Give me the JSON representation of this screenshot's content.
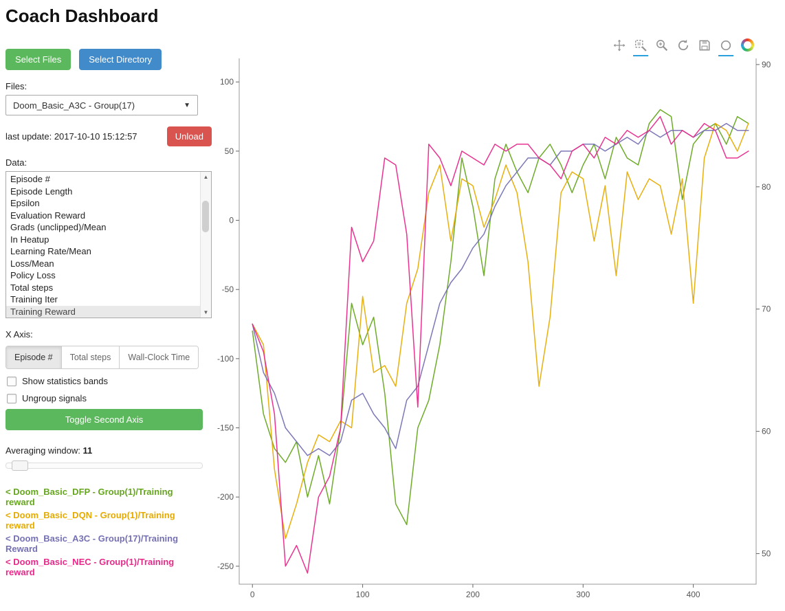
{
  "header": {
    "title": "Coach Dashboard"
  },
  "sidebar": {
    "select_files_label": "Select Files",
    "select_directory_label": "Select Directory",
    "files_label": "Files:",
    "files_dropdown_value": "Doom_Basic_A3C - Group(17)",
    "last_update_text": "last update: 2017-10-10 15:12:57",
    "unload_label": "Unload",
    "data_label": "Data:",
    "data_items": [
      "Episode #",
      "Episode Length",
      "Epsilon",
      "Evaluation Reward",
      "Grads (unclipped)/Mean",
      "In Heatup",
      "Learning Rate/Mean",
      "Loss/Mean",
      "Policy Loss",
      "Total steps",
      "Training Iter",
      "Training Reward"
    ],
    "data_selected_item": "Training Reward",
    "x_axis_label": "X Axis:",
    "x_axis_options": [
      "Episode #",
      "Total steps",
      "Wall-Clock Time"
    ],
    "x_axis_selected": "Episode #",
    "checkboxes": [
      {
        "label": "Show statistics bands",
        "checked": false
      },
      {
        "label": "Ungroup signals",
        "checked": false
      }
    ],
    "toggle_second_axis_label": "Toggle Second Axis",
    "averaging_window_label": "Averaging window:",
    "averaging_window_value": "11",
    "legend": [
      {
        "label": "< Doom_Basic_DFP - Group(1)/Training reward",
        "color": "#66a61e"
      },
      {
        "label": "< Doom_Basic_DQN - Group(1)/Training reward",
        "color": "#e6ab02"
      },
      {
        "label": "< Doom_Basic_A3C - Group(17)/Training Reward",
        "color": "#7570b3"
      },
      {
        "label": "< Doom_Basic_NEC - Group(1)/Training reward",
        "color": "#e7298a"
      }
    ]
  },
  "chart_toolbar": {
    "active_color": "#2aa1dc",
    "icons": [
      {
        "name": "pan-icon",
        "active": false
      },
      {
        "name": "box-zoom-icon",
        "active": true
      },
      {
        "name": "wheel-zoom-icon",
        "active": false
      },
      {
        "name": "reset-icon",
        "active": false
      },
      {
        "name": "save-icon",
        "active": false
      },
      {
        "name": "hover-icon",
        "active": true
      },
      {
        "name": "bokeh-logo-icon",
        "active": false
      }
    ]
  },
  "chart_data": {
    "type": "line",
    "title": "",
    "xlabel": "",
    "ylabel": "",
    "grid": false,
    "legend_position": "sidebar-bottom-left",
    "x_ticks": [
      0,
      100,
      200,
      300,
      400
    ],
    "y_left_ticks": [
      100,
      50,
      0,
      -50,
      -100,
      -150,
      -200,
      -250
    ],
    "y_right_ticks": [
      90,
      80,
      70,
      60,
      50
    ],
    "x_range": [
      -12,
      457
    ],
    "y_left_range": [
      -263,
      117
    ],
    "y_right_range": [
      47.5,
      90.5
    ],
    "x": [
      0,
      10,
      20,
      30,
      40,
      50,
      60,
      70,
      80,
      90,
      100,
      110,
      120,
      130,
      140,
      150,
      160,
      170,
      180,
      190,
      200,
      210,
      220,
      230,
      240,
      250,
      260,
      270,
      280,
      290,
      300,
      310,
      320,
      330,
      340,
      350,
      360,
      370,
      380,
      390,
      400,
      410,
      420,
      430,
      440,
      450
    ],
    "series": [
      {
        "name": "Doom_Basic_DFP - Group(1)/Training reward",
        "color": "#66a61e",
        "axis": "left",
        "y": [
          -80,
          -140,
          -165,
          -175,
          -160,
          -200,
          -170,
          -205,
          -150,
          -60,
          -90,
          -70,
          -125,
          -205,
          -220,
          -150,
          -130,
          -90,
          -30,
          45,
          10,
          -40,
          30,
          55,
          35,
          20,
          45,
          55,
          40,
          20,
          40,
          55,
          30,
          60,
          45,
          40,
          70,
          80,
          75,
          15,
          55,
          65,
          70,
          55,
          75,
          70
        ]
      },
      {
        "name": "Doom_Basic_DQN - Group(1)/Training reward",
        "color": "#e6ab02",
        "axis": "left",
        "y": [
          -75,
          -90,
          -180,
          -230,
          -205,
          -175,
          -155,
          -160,
          -145,
          -150,
          -55,
          -110,
          -105,
          -120,
          -60,
          -35,
          20,
          40,
          -15,
          30,
          25,
          -5,
          15,
          40,
          20,
          -30,
          -120,
          -70,
          20,
          35,
          30,
          -15,
          25,
          -40,
          35,
          15,
          30,
          25,
          -10,
          30,
          -60,
          45,
          70,
          65,
          50,
          70
        ]
      },
      {
        "name": "Doom_Basic_A3C - Group(17)/Training Reward",
        "color": "#7570b3",
        "axis": "left",
        "y": [
          -75,
          -110,
          -125,
          -150,
          -160,
          -170,
          -165,
          -170,
          -160,
          -130,
          -125,
          -140,
          -150,
          -165,
          -130,
          -120,
          -90,
          -60,
          -45,
          -35,
          -20,
          -10,
          10,
          25,
          35,
          45,
          45,
          40,
          50,
          50,
          55,
          55,
          50,
          55,
          60,
          55,
          65,
          60,
          65,
          65,
          60,
          65,
          65,
          70,
          65,
          65
        ]
      },
      {
        "name": "Doom_Basic_NEC - Group(1)/Training reward",
        "color": "#e7298a",
        "axis": "left",
        "y": [
          -75,
          -95,
          -140,
          -250,
          -235,
          -255,
          -200,
          -185,
          -150,
          -5,
          -30,
          -15,
          45,
          40,
          -10,
          -135,
          55,
          45,
          25,
          50,
          45,
          40,
          55,
          50,
          55,
          55,
          45,
          40,
          30,
          50,
          55,
          45,
          60,
          55,
          65,
          60,
          65,
          75,
          55,
          65,
          60,
          70,
          65,
          45,
          45,
          50
        ]
      }
    ]
  }
}
